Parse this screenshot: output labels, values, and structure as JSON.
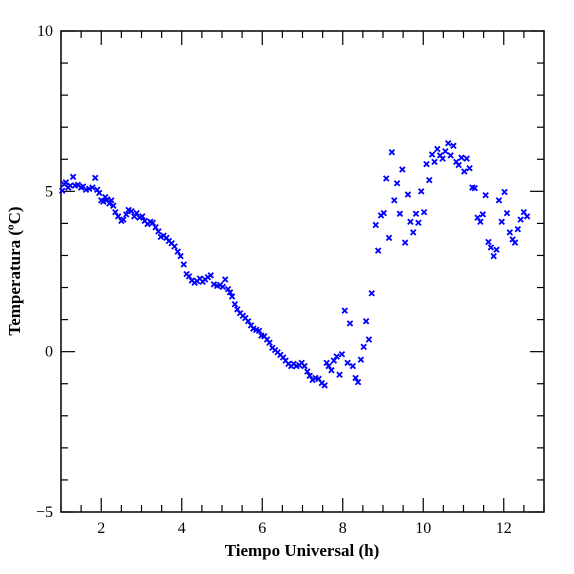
{
  "chart_data": {
    "type": "scatter",
    "xlabel": "Tiempo Universal (h)",
    "ylabel": "Temperatura (ºC)",
    "xlim": [
      1,
      13
    ],
    "ylim": [
      -5,
      10
    ],
    "x_ticks": [
      2,
      4,
      6,
      8,
      10,
      12
    ],
    "y_ticks": [
      -5,
      0,
      5,
      10
    ],
    "x_tick_labels": [
      "2",
      "4",
      "6",
      "8",
      "10",
      "12"
    ],
    "y_tick_labels": [
      "−5",
      "0",
      "5",
      "10"
    ],
    "marker": "x",
    "color": "#0000ff",
    "grid": false,
    "series": [
      {
        "points": [
          [
            1.03,
            5.02
          ],
          [
            1.08,
            5.22
          ],
          [
            1.12,
            5.28
          ],
          [
            1.18,
            5.12
          ],
          [
            1.23,
            5.18
          ],
          [
            1.3,
            5.45
          ],
          [
            1.35,
            5.18
          ],
          [
            1.42,
            5.2
          ],
          [
            1.5,
            5.12
          ],
          [
            1.55,
            5.15
          ],
          [
            1.62,
            5.05
          ],
          [
            1.7,
            5.08
          ],
          [
            1.78,
            5.12
          ],
          [
            1.85,
            5.42
          ],
          [
            1.9,
            5.05
          ],
          [
            1.95,
            4.95
          ],
          [
            2.0,
            4.72
          ],
          [
            2.05,
            4.68
          ],
          [
            2.1,
            4.82
          ],
          [
            2.15,
            4.75
          ],
          [
            2.2,
            4.62
          ],
          [
            2.25,
            4.72
          ],
          [
            2.3,
            4.55
          ],
          [
            2.35,
            4.35
          ],
          [
            2.42,
            4.22
          ],
          [
            2.5,
            4.08
          ],
          [
            2.55,
            4.12
          ],
          [
            2.62,
            4.28
          ],
          [
            2.68,
            4.42
          ],
          [
            2.75,
            4.38
          ],
          [
            2.82,
            4.22
          ],
          [
            2.88,
            4.32
          ],
          [
            2.95,
            4.18
          ],
          [
            3.02,
            4.22
          ],
          [
            3.08,
            4.08
          ],
          [
            3.15,
            3.98
          ],
          [
            3.22,
            4.05
          ],
          [
            3.28,
            4.02
          ],
          [
            3.35,
            3.88
          ],
          [
            3.42,
            3.75
          ],
          [
            3.48,
            3.58
          ],
          [
            3.55,
            3.62
          ],
          [
            3.62,
            3.55
          ],
          [
            3.68,
            3.45
          ],
          [
            3.75,
            3.38
          ],
          [
            3.82,
            3.28
          ],
          [
            3.9,
            3.12
          ],
          [
            3.97,
            2.98
          ],
          [
            4.05,
            2.72
          ],
          [
            4.12,
            2.42
          ],
          [
            4.18,
            2.35
          ],
          [
            4.25,
            2.22
          ],
          [
            4.32,
            2.15
          ],
          [
            4.38,
            2.2
          ],
          [
            4.45,
            2.28
          ],
          [
            4.52,
            2.18
          ],
          [
            4.58,
            2.25
          ],
          [
            4.65,
            2.32
          ],
          [
            4.72,
            2.38
          ],
          [
            4.8,
            2.1
          ],
          [
            4.88,
            2.05
          ],
          [
            4.95,
            2.08
          ],
          [
            5.02,
            2.02
          ],
          [
            5.08,
            2.25
          ],
          [
            5.15,
            1.95
          ],
          [
            5.2,
            1.85
          ],
          [
            5.25,
            1.72
          ],
          [
            5.32,
            1.48
          ],
          [
            5.38,
            1.32
          ],
          [
            5.45,
            1.2
          ],
          [
            5.52,
            1.12
          ],
          [
            5.58,
            1.05
          ],
          [
            5.65,
            0.95
          ],
          [
            5.72,
            0.82
          ],
          [
            5.78,
            0.72
          ],
          [
            5.85,
            0.68
          ],
          [
            5.92,
            0.65
          ],
          [
            5.98,
            0.5
          ],
          [
            6.05,
            0.48
          ],
          [
            6.12,
            0.38
          ],
          [
            6.18,
            0.28
          ],
          [
            6.25,
            0.12
          ],
          [
            6.32,
            0.05
          ],
          [
            6.38,
            -0.02
          ],
          [
            6.45,
            -0.1
          ],
          [
            6.52,
            -0.18
          ],
          [
            6.58,
            -0.28
          ],
          [
            6.65,
            -0.38
          ],
          [
            6.72,
            -0.45
          ],
          [
            6.78,
            -0.38
          ],
          [
            6.85,
            -0.45
          ],
          [
            6.92,
            -0.42
          ],
          [
            6.98,
            -0.35
          ],
          [
            7.05,
            -0.45
          ],
          [
            7.12,
            -0.62
          ],
          [
            7.18,
            -0.75
          ],
          [
            7.25,
            -0.88
          ],
          [
            7.32,
            -0.82
          ],
          [
            7.4,
            -0.85
          ],
          [
            7.48,
            -0.98
          ],
          [
            7.55,
            -1.05
          ],
          [
            7.6,
            -0.35
          ],
          [
            7.65,
            -0.45
          ],
          [
            7.72,
            -0.58
          ],
          [
            7.78,
            -0.28
          ],
          [
            7.85,
            -0.15
          ],
          [
            7.92,
            -0.72
          ],
          [
            7.98,
            -0.08
          ],
          [
            8.05,
            1.28
          ],
          [
            8.12,
            -0.35
          ],
          [
            8.18,
            0.88
          ],
          [
            8.25,
            -0.45
          ],
          [
            8.32,
            -0.82
          ],
          [
            8.38,
            -0.95
          ],
          [
            8.45,
            -0.25
          ],
          [
            8.52,
            0.15
          ],
          [
            8.58,
            0.95
          ],
          [
            8.65,
            0.38
          ],
          [
            8.72,
            1.82
          ],
          [
            8.82,
            3.95
          ],
          [
            8.88,
            3.15
          ],
          [
            8.95,
            4.25
          ],
          [
            9.02,
            4.32
          ],
          [
            9.08,
            5.4
          ],
          [
            9.15,
            3.55
          ],
          [
            9.22,
            6.22
          ],
          [
            9.28,
            4.72
          ],
          [
            9.35,
            5.25
          ],
          [
            9.42,
            4.3
          ],
          [
            9.48,
            5.68
          ],
          [
            9.55,
            3.4
          ],
          [
            9.62,
            4.9
          ],
          [
            9.68,
            4.05
          ],
          [
            9.75,
            3.72
          ],
          [
            9.82,
            4.3
          ],
          [
            9.88,
            4.02
          ],
          [
            9.95,
            5.0
          ],
          [
            10.02,
            4.35
          ],
          [
            10.08,
            5.85
          ],
          [
            10.15,
            5.35
          ],
          [
            10.22,
            6.15
          ],
          [
            10.28,
            5.92
          ],
          [
            10.35,
            6.32
          ],
          [
            10.42,
            6.12
          ],
          [
            10.48,
            6.02
          ],
          [
            10.55,
            6.25
          ],
          [
            10.62,
            6.5
          ],
          [
            10.68,
            6.12
          ],
          [
            10.75,
            6.42
          ],
          [
            10.82,
            5.92
          ],
          [
            10.88,
            5.82
          ],
          [
            10.95,
            6.05
          ],
          [
            11.02,
            5.62
          ],
          [
            11.08,
            6.02
          ],
          [
            11.15,
            5.72
          ],
          [
            11.22,
            5.12
          ],
          [
            11.28,
            5.1
          ],
          [
            11.35,
            4.18
          ],
          [
            11.42,
            4.05
          ],
          [
            11.48,
            4.28
          ],
          [
            11.55,
            4.88
          ],
          [
            11.62,
            3.42
          ],
          [
            11.68,
            3.25
          ],
          [
            11.75,
            2.98
          ],
          [
            11.82,
            3.18
          ],
          [
            11.88,
            4.72
          ],
          [
            11.95,
            4.05
          ],
          [
            12.02,
            4.98
          ],
          [
            12.08,
            4.32
          ],
          [
            12.15,
            3.72
          ],
          [
            12.22,
            3.5
          ],
          [
            12.28,
            3.4
          ],
          [
            12.35,
            3.82
          ],
          [
            12.42,
            4.12
          ],
          [
            12.5,
            4.35
          ],
          [
            12.58,
            4.22
          ]
        ]
      }
    ]
  }
}
